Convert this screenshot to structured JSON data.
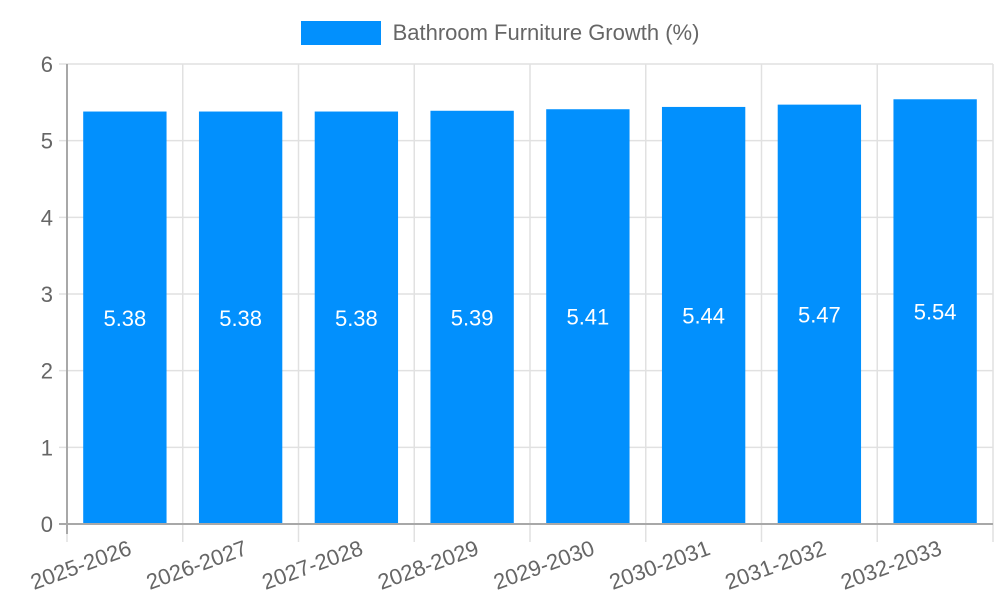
{
  "chart_data": {
    "type": "bar",
    "title": "",
    "legend": [
      {
        "label": "Bathroom Furniture Growth (%)",
        "color": "#0290fd"
      }
    ],
    "legend_position": "top",
    "categories": [
      "2025-2026",
      "2026-2027",
      "2027-2028",
      "2028-2029",
      "2029-2030",
      "2030-2031",
      "2031-2032",
      "2032-2033"
    ],
    "series": [
      {
        "name": "Bathroom Furniture Growth (%)",
        "values": [
          5.38,
          5.38,
          5.38,
          5.39,
          5.41,
          5.44,
          5.47,
          5.54
        ],
        "color": "#0290fd"
      }
    ],
    "xlabel": "",
    "ylabel": "",
    "ylim": [
      0,
      6
    ],
    "yticks": [
      0,
      1,
      2,
      3,
      4,
      5,
      6
    ],
    "grid": true,
    "data_labels": true,
    "x_tick_rotation": -20
  },
  "colors": {
    "bar": "#0290fd",
    "grid": "#e1e1e1",
    "axis": "#a8a8a8",
    "tick_text": "#666666",
    "data_label": "#ffffff"
  }
}
